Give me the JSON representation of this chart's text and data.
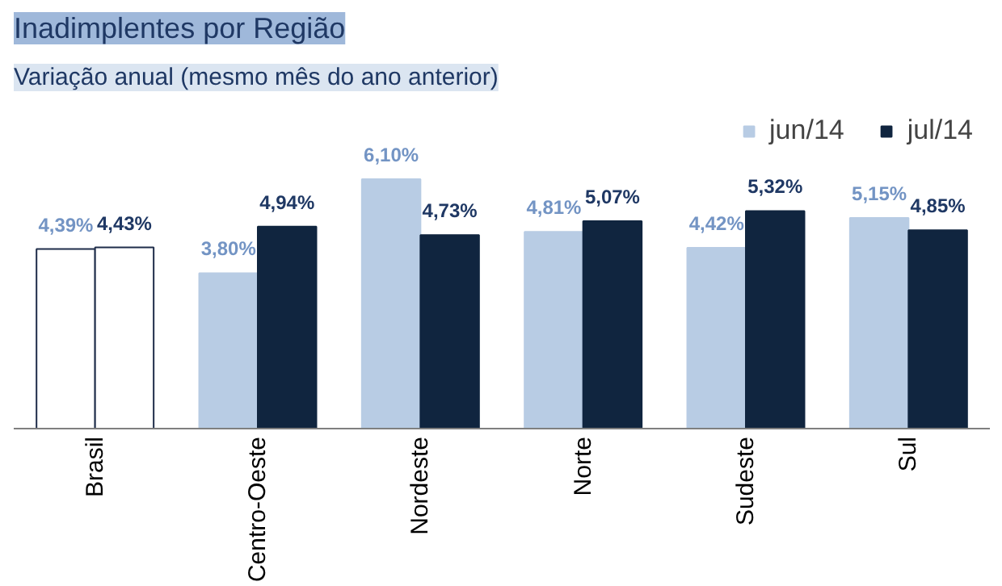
{
  "chart_data": {
    "type": "bar",
    "title": "Inadimplentes por Região",
    "subtitle": "Variação anual (mesmo mês do ano anterior)",
    "categories": [
      "Brasil",
      "Centro-Oeste",
      "Nordeste",
      "Norte",
      "Sudeste",
      "Sul"
    ],
    "series": [
      {
        "name": "jun/14",
        "color": "#b8cce4",
        "colors": [
          "#ffffff",
          "#b8cce4",
          "#b8cce4",
          "#b8cce4",
          "#b8cce4",
          "#b8cce4"
        ],
        "values": [
          4.39,
          3.8,
          6.1,
          4.81,
          4.42,
          5.15
        ],
        "value_labels": [
          "4,39%",
          "3,80%",
          "6,10%",
          "4,81%",
          "4,42%",
          "5,15%"
        ]
      },
      {
        "name": "jul/14",
        "color": "#10253f",
        "colors": [
          "#ffffff",
          "#10253f",
          "#10253f",
          "#10253f",
          "#10253f",
          "#10253f"
        ],
        "values": [
          4.43,
          4.94,
          4.73,
          5.07,
          5.32,
          4.85
        ],
        "value_labels": [
          "4,43%",
          "4,94%",
          "4,73%",
          "5,07%",
          "5,32%",
          "4,85%"
        ]
      }
    ],
    "legend": "top right",
    "grid": false
  }
}
